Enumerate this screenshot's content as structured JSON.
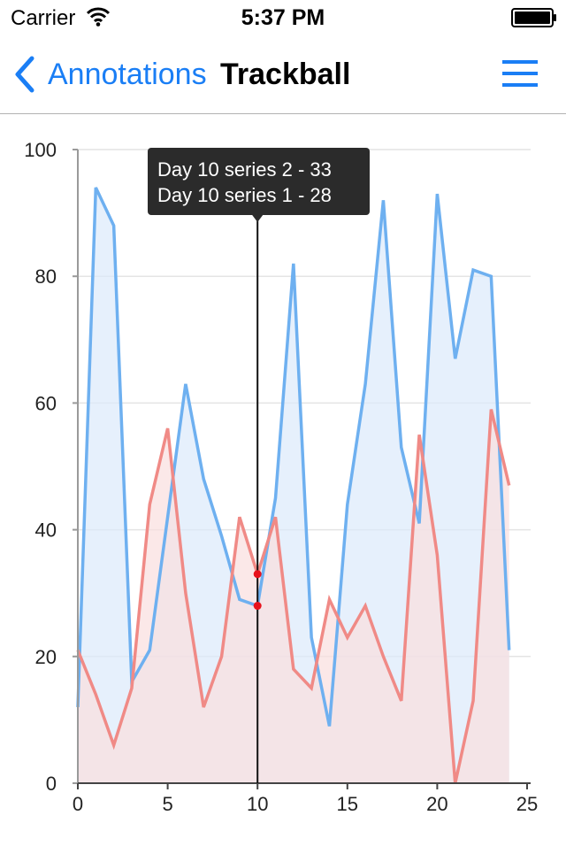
{
  "status_bar": {
    "carrier": "Carrier",
    "time": "5:37 PM",
    "wifi_icon": "wifi-icon",
    "battery_icon": "battery-icon"
  },
  "nav": {
    "back_label": "Annotations",
    "back_icon": "chevron-left-icon",
    "title": "Trackball",
    "menu_icon": "hamburger-menu-icon",
    "accent_color": "#1a7ef5"
  },
  "chart_data": {
    "type": "area",
    "x": [
      0,
      1,
      2,
      3,
      4,
      5,
      6,
      7,
      8,
      9,
      10,
      11,
      12,
      13,
      14,
      15,
      16,
      17,
      18,
      19,
      20,
      21,
      22,
      23,
      24
    ],
    "series": [
      {
        "color": "#6eb0f0",
        "fill": "#dbeafb",
        "values": [
          12,
          94,
          88,
          16,
          21,
          42,
          63,
          48,
          39,
          29,
          28,
          45,
          82,
          23,
          9,
          44,
          63,
          92,
          53,
          41,
          93,
          67,
          81,
          80,
          21
        ]
      },
      {
        "color": "#f08a86",
        "fill": "#f9dede",
        "values": [
          21,
          14,
          6,
          15,
          44,
          56,
          30,
          12,
          20,
          42,
          33,
          42,
          18,
          15,
          29,
          23,
          28,
          20,
          13,
          55,
          36,
          0,
          13,
          59,
          47
        ]
      }
    ],
    "xlim": [
      0,
      25
    ],
    "ylim": [
      0,
      100
    ],
    "x_ticks": [
      0,
      5,
      10,
      15,
      20,
      25
    ],
    "x_tick_labels": [
      "0",
      "5",
      "10",
      "15",
      "20",
      "25"
    ],
    "y_ticks": [
      0,
      20,
      40,
      60,
      80,
      100
    ],
    "y_tick_labels": [
      "0",
      "20",
      "40",
      "60",
      "80",
      "100"
    ],
    "grid": "horizontal",
    "trackball": {
      "x": 10,
      "lines": [
        "Day 10 series 2 - 33",
        "Day 10 series 1 - 28"
      ],
      "points": [
        33,
        28
      ],
      "marker_color": "#e8121c"
    }
  }
}
